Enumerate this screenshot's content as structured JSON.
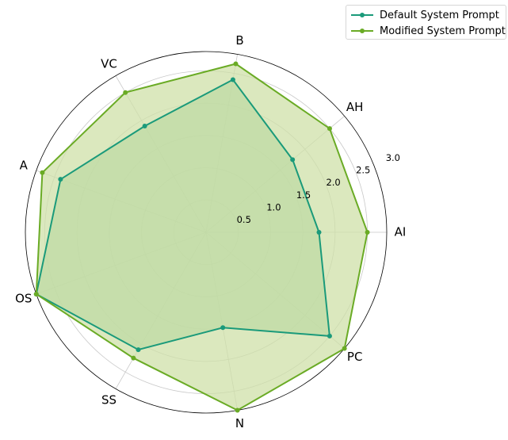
{
  "chart_data": {
    "type": "radar",
    "categories": [
      "AI",
      "AH",
      "B",
      "VC",
      "A",
      "OS",
      "SS",
      "N",
      "PC"
    ],
    "radial_ticks": [
      0.5,
      1.0,
      1.5,
      2.0,
      2.5,
      3.0
    ],
    "rlim": [
      0,
      2.8
    ],
    "grid": true,
    "legend_position": "top-right",
    "series": [
      {
        "name": "Default System Prompt",
        "color": "#1a9a7a",
        "fill": "#8fc89a",
        "values": [
          1.75,
          1.75,
          2.4,
          1.9,
          2.4,
          2.8,
          2.1,
          1.5,
          2.5
        ]
      },
      {
        "name": "Modified System Prompt",
        "color": "#6aab25",
        "fill": "#cfe0a8",
        "values": [
          2.5,
          2.5,
          2.65,
          2.5,
          2.7,
          2.8,
          2.25,
          2.8,
          2.8
        ]
      }
    ]
  }
}
